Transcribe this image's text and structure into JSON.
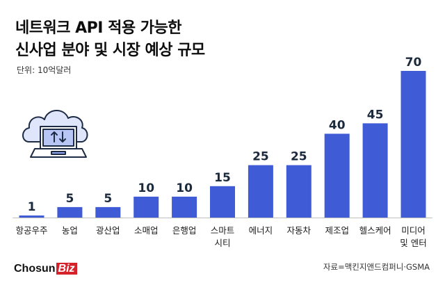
{
  "header": {
    "title_line1": "네트워크 API 적용 가능한",
    "title_line2": "신사업 분야 및 시장 예상 규모",
    "unit": "단위: 10억달러"
  },
  "footer": {
    "source": "자료=맥킨지앤드컴퍼니·GSMA",
    "logo_main": "Chosun",
    "logo_accent": "Biz"
  },
  "colors": {
    "bar": "#3f5bd6",
    "baseline": "#bfbfbf",
    "logo_accent": "#d6222a"
  },
  "illustration": {
    "icon": "cloud-laptop-sync-icon"
  },
  "chart_data": {
    "type": "bar",
    "title": "",
    "xlabel": "",
    "ylabel": "",
    "ylim": [
      0,
      70
    ],
    "categories": [
      [
        "항공우주"
      ],
      [
        "농업"
      ],
      [
        "광산업"
      ],
      [
        "소매업"
      ],
      [
        "은행업"
      ],
      [
        "스마트",
        "시티"
      ],
      [
        "에너지"
      ],
      [
        "자동차"
      ],
      [
        "제조업"
      ],
      [
        "헬스케어"
      ],
      [
        "미디어",
        "및 엔터"
      ]
    ],
    "values": [
      1,
      5,
      5,
      10,
      10,
      15,
      25,
      25,
      40,
      45,
      70
    ],
    "value_labels": [
      "1",
      "5",
      "5",
      "10",
      "10",
      "15",
      "25",
      "25",
      "40",
      "45",
      "70"
    ],
    "grid": false,
    "legend": "none"
  }
}
